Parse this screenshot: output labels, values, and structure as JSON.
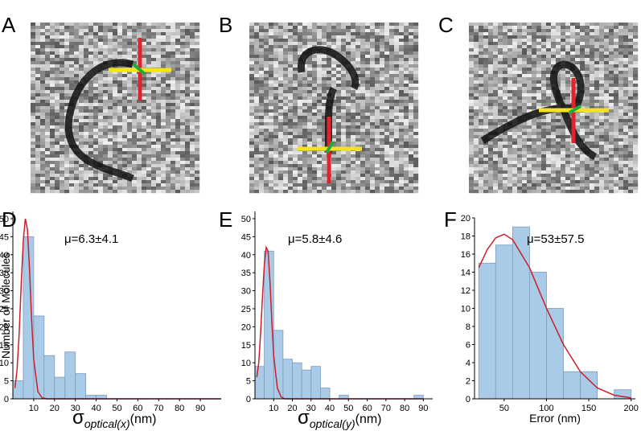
{
  "image_panels": [
    {
      "label": "A"
    },
    {
      "label": "B"
    },
    {
      "label": "C"
    }
  ],
  "chart_data": [
    {
      "type": "histogram",
      "panel_label": "D",
      "annotation": "μ=6.3±4.1",
      "ylabel": "Number of Molecules",
      "xlabel": {
        "symbol": "σ",
        "subscript": "optical(x)",
        "unit": "(nm)"
      },
      "bins": [
        0,
        5,
        10,
        15,
        20,
        25,
        30,
        35,
        40,
        45
      ],
      "values": [
        5,
        45,
        23,
        12,
        6,
        13,
        7,
        1,
        1
      ],
      "color": "#a9cbe8",
      "fit": {
        "color": "#cc1f2b",
        "x": [
          1,
          2,
          3,
          4,
          5,
          6,
          7,
          8,
          9,
          10,
          12,
          14,
          16,
          20,
          30,
          50,
          100
        ],
        "values": [
          3,
          8,
          18,
          32,
          44,
          50,
          47,
          36,
          22,
          11,
          2,
          0.3,
          0,
          0,
          0,
          0,
          0
        ]
      },
      "xlim": [
        0,
        100
      ],
      "ylim": [
        0,
        52
      ],
      "xticks": [
        10,
        20,
        30,
        40,
        50,
        60,
        70,
        80,
        90
      ],
      "yticks": [
        0,
        5,
        10,
        15,
        20,
        25,
        30,
        35,
        40,
        45,
        50
      ]
    },
    {
      "type": "histogram",
      "panel_label": "E",
      "annotation": "μ=5.8±4.6",
      "xlabel": {
        "symbol": "σ",
        "subscript": "optical(y)",
        "unit": "(nm)"
      },
      "bins": [
        0,
        5,
        10,
        15,
        20,
        25,
        30,
        35,
        40,
        45,
        50,
        55,
        60,
        65,
        70,
        75,
        80,
        85,
        90,
        95
      ],
      "values": [
        9,
        41,
        19,
        11,
        10,
        8,
        9,
        3,
        0,
        1,
        0,
        0,
        0,
        0,
        0,
        0,
        0,
        1,
        0
      ],
      "color": "#a9cbe8",
      "fit": {
        "color": "#cc1f2b",
        "x": [
          1,
          2,
          3,
          4,
          5,
          6,
          7,
          8,
          9,
          10,
          12,
          14,
          16,
          20,
          40,
          60,
          90
        ],
        "values": [
          6,
          10,
          18,
          28,
          37,
          42,
          41,
          33,
          22,
          12,
          3,
          0.5,
          0,
          0,
          0,
          0,
          0
        ]
      },
      "xlim": [
        0,
        95
      ],
      "ylim": [
        0,
        52
      ],
      "xticks": [
        10,
        20,
        30,
        40,
        50,
        60,
        70,
        80,
        90
      ],
      "yticks": [
        0,
        5,
        10,
        15,
        20,
        25,
        30,
        35,
        40,
        45,
        50
      ]
    },
    {
      "type": "histogram",
      "panel_label": "F",
      "annotation": "μ=53±57.5",
      "xlabel": "Error (nm)",
      "bins": [
        20,
        40,
        60,
        80,
        100,
        120,
        140,
        160,
        180,
        200
      ],
      "values": [
        15,
        17,
        19,
        14,
        10,
        3,
        3,
        0,
        1
      ],
      "color": "#a9cbe8",
      "fit": {
        "color": "#cc1f2b",
        "x": [
          20,
          30,
          40,
          50,
          60,
          80,
          100,
          120,
          140,
          160,
          180,
          200
        ],
        "values": [
          14.5,
          16.5,
          17.8,
          18.2,
          17.6,
          14.5,
          10,
          6,
          3,
          1.2,
          0.4,
          0.1
        ]
      },
      "xlim": [
        15,
        205
      ],
      "ylim": [
        0,
        20
      ],
      "xticks": [
        50,
        100,
        150,
        200
      ],
      "yticks": [
        0,
        2,
        4,
        6,
        8,
        10,
        12,
        14,
        16,
        18,
        20
      ]
    }
  ]
}
